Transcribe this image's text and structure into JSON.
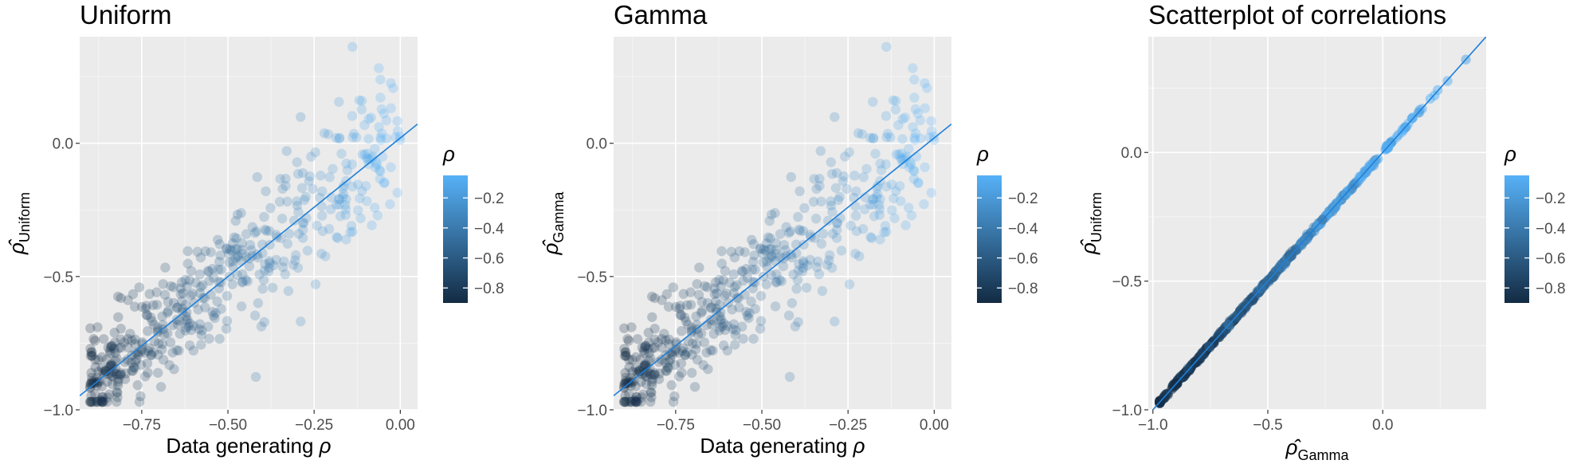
{
  "chart_data": [
    {
      "type": "scatter",
      "title": "Uniform",
      "xlabel": "Data generating ρ",
      "ylabel_base": "ρ̂",
      "ylabel_sub": "Uniform",
      "xlim": [
        -0.93,
        0.05
      ],
      "ylim": [
        -1.0,
        0.4
      ],
      "xticks": [
        -0.75,
        -0.5,
        -0.25,
        0.0
      ],
      "xtick_labels": [
        "−0.75",
        "−0.50",
        "−0.25",
        "0.00"
      ],
      "yticks": [
        -1.0,
        -0.5,
        0.0
      ],
      "ytick_labels": [
        "−1.0",
        "−0.5",
        "0.0"
      ],
      "grid": true,
      "fit_line": {
        "intercept": 0.02,
        "slope": 1.04
      },
      "point_alpha": 0.25,
      "n_points": 500,
      "x_range": [
        -0.9,
        0.0
      ],
      "y_noise_sd": 0.09,
      "y_noise_sd_extra": 0.06,
      "seed": 11
    },
    {
      "type": "scatter",
      "title": "Gamma",
      "xlabel": "Data generating ρ",
      "ylabel_base": "ρ̂",
      "ylabel_sub": "Gamma",
      "xlim": [
        -0.93,
        0.05
      ],
      "ylim": [
        -1.0,
        0.4
      ],
      "xticks": [
        -0.75,
        -0.5,
        -0.25,
        0.0
      ],
      "xtick_labels": [
        "−0.75",
        "−0.50",
        "−0.25",
        "0.00"
      ],
      "yticks": [
        -1.0,
        -0.5,
        0.0
      ],
      "ytick_labels": [
        "−1.0",
        "−0.5",
        "0.0"
      ],
      "grid": true,
      "fit_line": {
        "intercept": 0.02,
        "slope": 1.04
      },
      "point_alpha": 0.25,
      "n_points": 500,
      "x_range": [
        -0.9,
        0.0
      ],
      "y_noise_sd": 0.09,
      "y_noise_sd_extra": 0.06,
      "seed": 11
    },
    {
      "type": "scatter",
      "title": "Scatterplot of correlations",
      "xlabel_base": "ρ̂",
      "xlabel_sub": "Gamma",
      "ylabel_base": "ρ̂",
      "ylabel_sub": "Uniform",
      "xlim": [
        -1.02,
        0.45
      ],
      "ylim": [
        -1.0,
        0.45
      ],
      "xticks": [
        -1.0,
        -0.5,
        0.0
      ],
      "xtick_labels": [
        "−1.0",
        "−0.5",
        "0.0"
      ],
      "yticks": [
        -1.0,
        -0.5,
        0.0
      ],
      "ytick_labels": [
        "−1.0",
        "−0.5",
        "0.0"
      ],
      "grid": true,
      "fit_line": {
        "intercept": 0.0,
        "slope": 1.0
      },
      "point_alpha": 0.5,
      "n_points": 500,
      "identity_noise_sd": 0.004,
      "seed": 11
    }
  ],
  "legend": {
    "title": "ρ",
    "labels": [
      "−0.2",
      "−0.4",
      "−0.6",
      "−0.8"
    ],
    "values": [
      -0.2,
      -0.4,
      -0.6,
      -0.8
    ],
    "range": [
      -0.9,
      -0.05
    ],
    "color_low": "#132B43",
    "color_high": "#56B1F7"
  },
  "colors": {
    "panel_bg": "#EBEBEB",
    "grid_major": "#FFFFFF",
    "fit_line": "#1E7FD9",
    "tick_text": "#4D4D4D",
    "tick_mark": "#333333"
  }
}
